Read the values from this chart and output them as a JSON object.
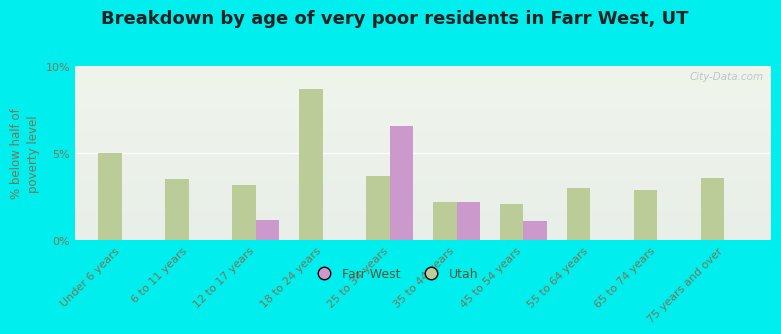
{
  "title": "Breakdown by age of very poor residents in Farr West, UT",
  "ylabel": "% below half of\npoverty level",
  "categories": [
    "Under 6 years",
    "6 to 11 years",
    "12 to 17 years",
    "18 to 24 years",
    "25 to 34 years",
    "35 to 44 years",
    "45 to 54 years",
    "55 to 64 years",
    "65 to 74 years",
    "75 years and over"
  ],
  "farr_west": [
    0,
    0,
    1.2,
    0,
    6.6,
    2.2,
    1.1,
    0,
    0,
    0
  ],
  "utah": [
    5.0,
    3.5,
    3.2,
    8.7,
    3.7,
    2.2,
    2.1,
    3.0,
    2.9,
    3.6
  ],
  "farr_west_color": "#cc99cc",
  "utah_color": "#bbcc99",
  "background_color": "#00eeee",
  "plot_bg_color_top": "#e8efe8",
  "plot_bg_color_bottom": "#f0f5ec",
  "ylim": [
    0,
    10
  ],
  "yticks": [
    0,
    5,
    10
  ],
  "ytick_labels": [
    "0%",
    "5%",
    "10%"
  ],
  "bar_width": 0.35,
  "title_fontsize": 13,
  "axis_label_fontsize": 8.5,
  "tick_fontsize": 8,
  "legend_labels": [
    "Farr West",
    "Utah"
  ],
  "watermark": "City-Data.com"
}
